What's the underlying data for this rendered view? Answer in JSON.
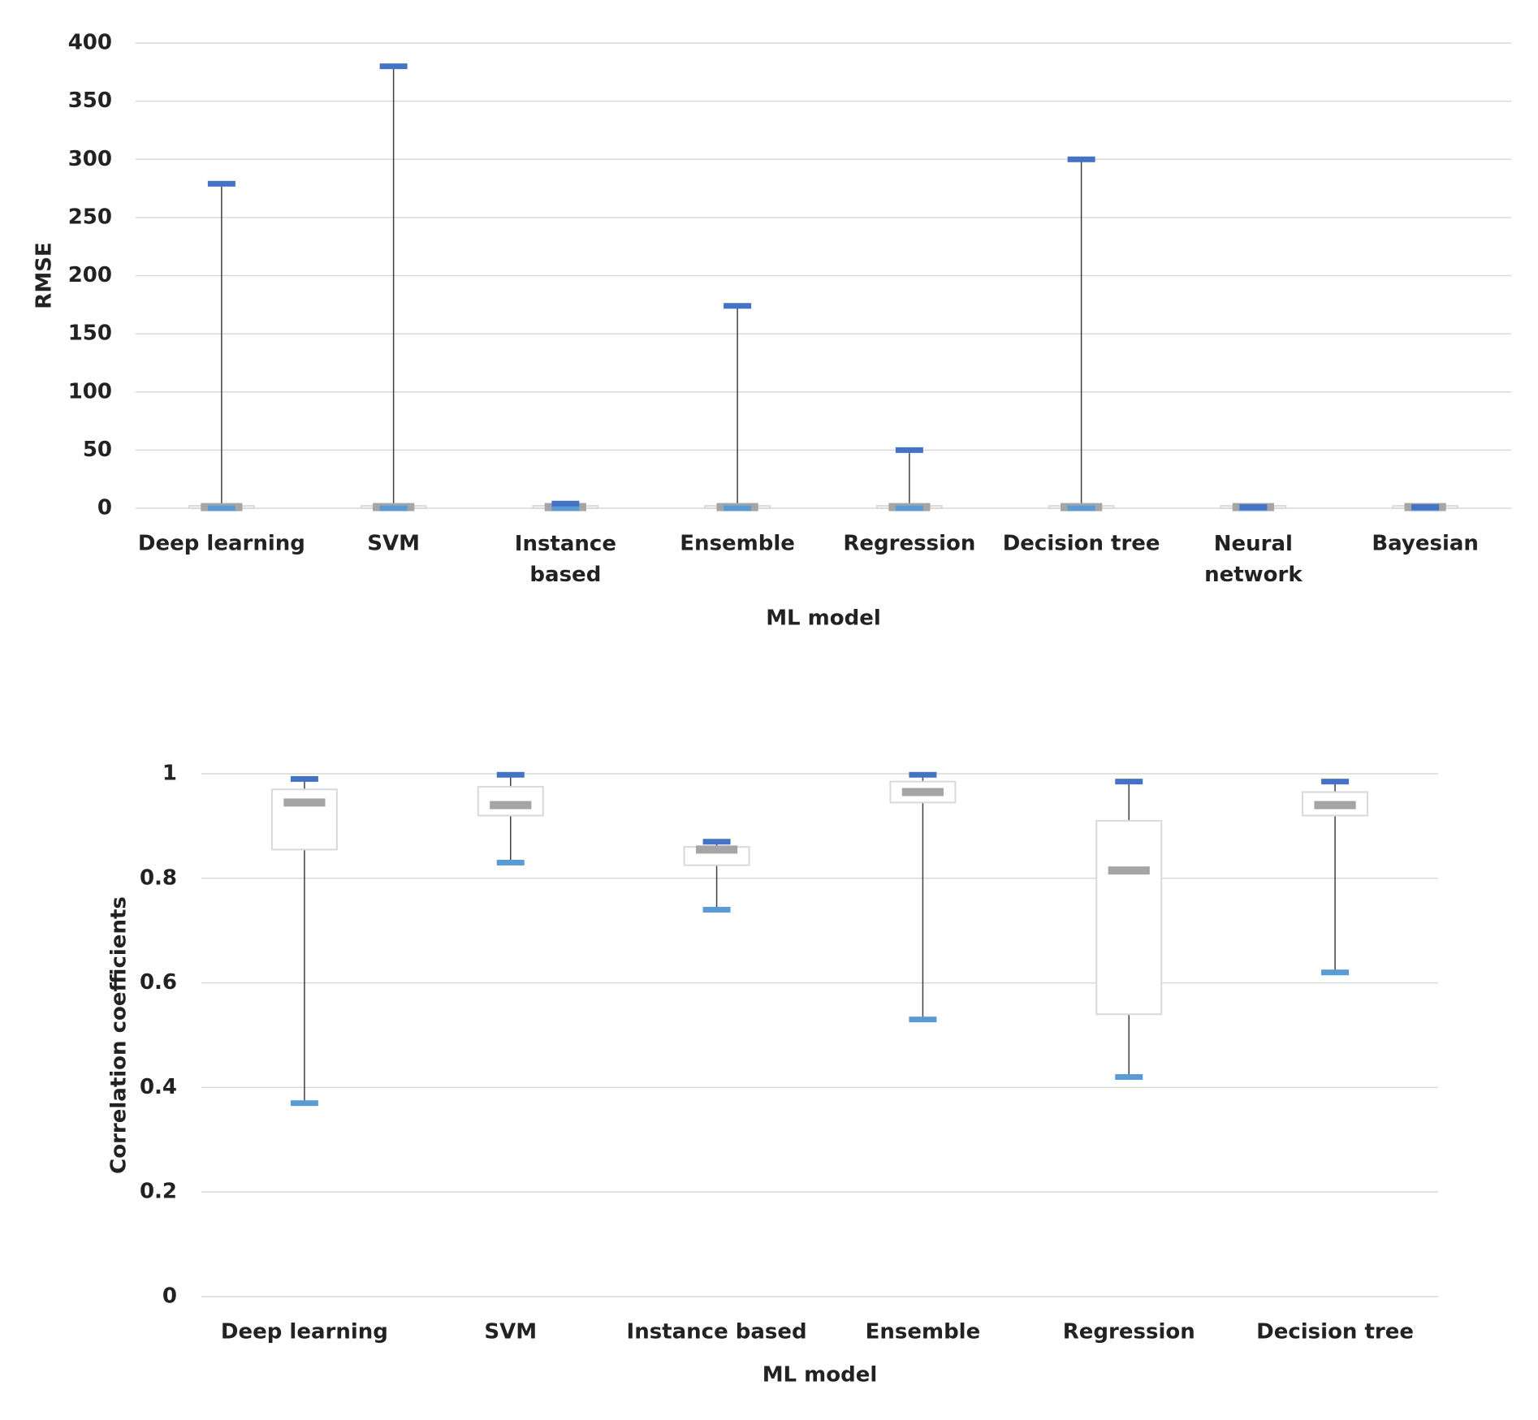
{
  "chart_data": [
    {
      "type": "box",
      "y_label": "RMSE",
      "x_label": "ML model",
      "categories": [
        "Deep learning",
        "SVM",
        "Instance\nbased",
        "Ensemble",
        "Regression",
        "Decision tree",
        "Neural\nnetwork",
        "Bayesian"
      ],
      "max": [
        279,
        380,
        4,
        174,
        50,
        300,
        1,
        1
      ],
      "q3": [
        2,
        2,
        2,
        2,
        2,
        2,
        2,
        2
      ],
      "median": [
        1,
        1,
        1,
        1,
        1,
        1,
        1,
        1
      ],
      "q1": [
        0,
        0,
        0,
        0,
        0,
        0,
        0,
        0
      ],
      "min": [
        0,
        0,
        0,
        0,
        0,
        0,
        0,
        0
      ],
      "colors": {
        "max": "#4472c4",
        "min": "#5b9bd5",
        "median": "#a5a5a5"
      },
      "ylim": [
        0,
        400
      ],
      "yticks": [
        0,
        50,
        100,
        150,
        200,
        250,
        300,
        350,
        400
      ],
      "grid": true
    },
    {
      "type": "box",
      "y_label": "Correlation coefficients",
      "x_label": "ML model",
      "categories": [
        "Deep learning",
        "SVM",
        "Instance based",
        "Ensemble",
        "Regression",
        "Decision tree"
      ],
      "max": [
        0.99,
        0.998,
        0.87,
        0.998,
        0.985,
        0.985
      ],
      "q3": [
        0.97,
        0.975,
        0.86,
        0.985,
        0.91,
        0.965
      ],
      "median": [
        0.945,
        0.94,
        0.855,
        0.965,
        0.815,
        0.94
      ],
      "q1": [
        0.855,
        0.92,
        0.825,
        0.945,
        0.54,
        0.92
      ],
      "min": [
        0.37,
        0.83,
        0.74,
        0.53,
        0.42,
        0.62
      ],
      "colors": {
        "max": "#4472c4",
        "min": "#5b9bd5",
        "median": "#a5a5a5"
      },
      "ylim": [
        0,
        1
      ],
      "yticks": [
        0,
        0.2,
        0.4,
        0.6,
        0.8,
        1
      ],
      "grid": true
    }
  ]
}
